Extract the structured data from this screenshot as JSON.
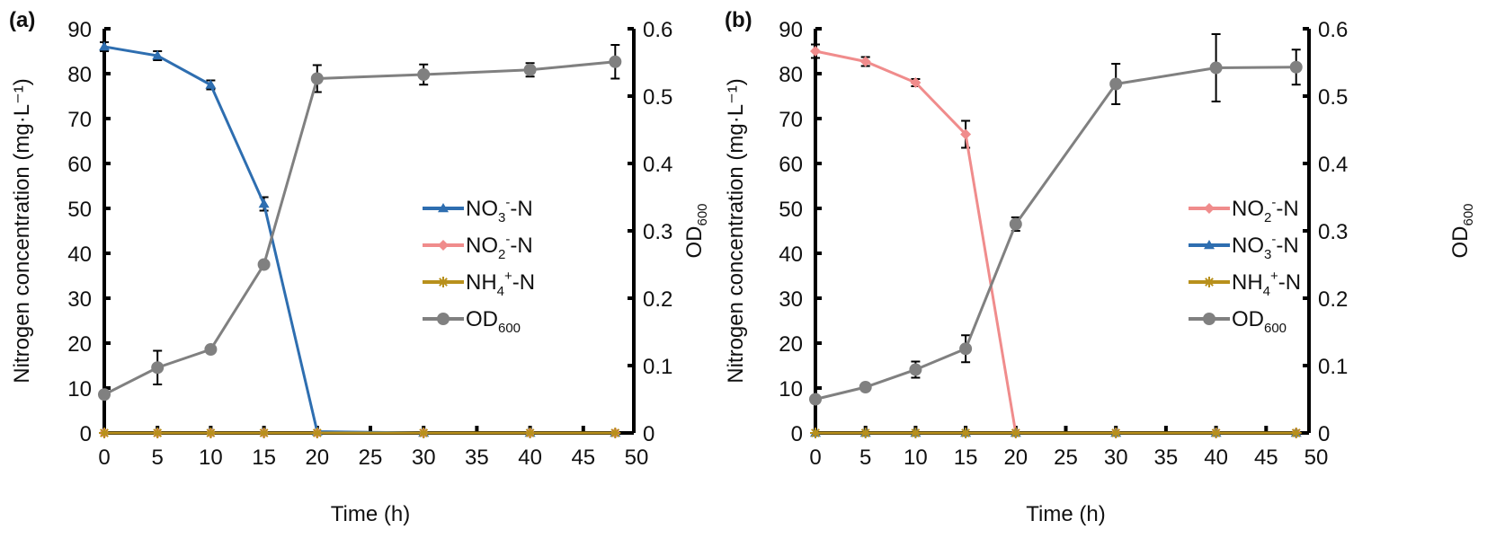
{
  "chart_data": [
    {
      "type": "line",
      "panel_label": "(a)",
      "xlabel": "Time (h)",
      "ylabel": "Nitrogen concentration (mg·L⁻¹)",
      "y2label": "OD600",
      "xlim": [
        0,
        50
      ],
      "ylim": [
        0,
        90
      ],
      "y2lim": [
        0,
        0.6
      ],
      "xticks": [
        0,
        5,
        10,
        15,
        20,
        25,
        30,
        35,
        40,
        45,
        50
      ],
      "yticks": [
        0,
        10,
        20,
        30,
        40,
        50,
        60,
        70,
        80,
        90
      ],
      "y2ticks": [
        "0",
        "0.1",
        "0.2",
        "0.3",
        "0.4",
        "0.5",
        "0.6"
      ],
      "x": [
        0,
        5,
        10,
        15,
        20,
        30,
        40,
        48
      ],
      "legend_position": "center-right",
      "series": [
        {
          "name": "NO3--N",
          "label_main": "NO",
          "label_sub": "3",
          "label_sup": "-",
          "label_tail": "-N",
          "axis": "left",
          "marker": "triangle",
          "color": "#2e6eb0",
          "values": [
            86,
            84,
            77.5,
            51,
            0.3,
            0,
            0,
            0
          ],
          "errors": [
            1,
            1,
            1,
            1.5,
            0,
            0,
            0,
            0
          ]
        },
        {
          "name": "NO2--N",
          "label_main": "NO",
          "label_sub": "2",
          "label_sup": "-",
          "label_tail": "-N",
          "axis": "left",
          "marker": "diamond",
          "color": "#f08c8c",
          "values": [
            0,
            0,
            0,
            0,
            0,
            0,
            0,
            0
          ],
          "errors": [
            0,
            0,
            0,
            0,
            0,
            0,
            0,
            0
          ]
        },
        {
          "name": "NH4+-N",
          "label_main": "NH",
          "label_sub": "4",
          "label_sup": "+",
          "label_tail": "-N",
          "axis": "left",
          "marker": "star",
          "color": "#b8901c",
          "values": [
            0,
            0,
            0,
            0,
            0,
            0,
            0,
            0
          ],
          "errors": [
            0,
            0,
            0,
            0,
            0,
            0,
            0,
            0
          ]
        },
        {
          "name": "OD600",
          "label_main": "OD",
          "label_sub": "600",
          "label_sup": "",
          "label_tail": "",
          "axis": "right",
          "marker": "circle",
          "color": "#808080",
          "values": [
            0.057,
            0.097,
            0.124,
            0.25,
            0.526,
            0.532,
            0.539,
            0.551
          ],
          "errors": [
            0.003,
            0.025,
            0.004,
            0.004,
            0.02,
            0.015,
            0.01,
            0.025
          ]
        }
      ]
    },
    {
      "type": "line",
      "panel_label": "(b)",
      "xlabel": "Time (h)",
      "ylabel": "Nitrogen concentration (mg·L⁻¹)",
      "y2label": "OD600",
      "xlim": [
        0,
        50
      ],
      "ylim": [
        0,
        90
      ],
      "y2lim": [
        0,
        0.6
      ],
      "xticks": [
        0,
        5,
        10,
        15,
        20,
        25,
        30,
        35,
        40,
        45,
        50
      ],
      "yticks": [
        0,
        10,
        20,
        30,
        40,
        50,
        60,
        70,
        80,
        90
      ],
      "y2ticks": [
        "0",
        "0.1",
        "0.2",
        "0.3",
        "0.4",
        "0.5",
        "0.6"
      ],
      "x": [
        0,
        5,
        10,
        15,
        20,
        30,
        40,
        48
      ],
      "legend_position": "center-right",
      "series": [
        {
          "name": "NO2--N",
          "label_main": "NO",
          "label_sub": "2",
          "label_sup": "-",
          "label_tail": "-N",
          "axis": "left",
          "marker": "diamond",
          "color": "#f08c8c",
          "values": [
            85,
            82.7,
            78,
            66.5,
            0,
            0,
            0,
            0
          ],
          "errors": [
            1.5,
            1,
            0.8,
            3,
            0,
            0,
            0,
            0
          ]
        },
        {
          "name": "NO3--N",
          "label_main": "NO",
          "label_sub": "3",
          "label_sup": "-",
          "label_tail": "-N",
          "axis": "left",
          "marker": "triangle",
          "color": "#2e6eb0",
          "values": [
            0,
            0,
            0,
            0,
            0,
            0,
            0,
            0
          ],
          "errors": [
            0,
            0,
            0,
            0,
            0,
            0,
            0,
            0
          ]
        },
        {
          "name": "NH4+-N",
          "label_main": "NH",
          "label_sub": "4",
          "label_sup": "+",
          "label_tail": "-N",
          "axis": "left",
          "marker": "star",
          "color": "#b8901c",
          "values": [
            0,
            0,
            0,
            0,
            0,
            0,
            0,
            0
          ],
          "errors": [
            0,
            0,
            0,
            0,
            0,
            0,
            0,
            0
          ]
        },
        {
          "name": "OD600",
          "label_main": "OD",
          "label_sub": "600",
          "label_sup": "",
          "label_tail": "",
          "axis": "right",
          "marker": "circle",
          "color": "#808080",
          "values": [
            0.05,
            0.068,
            0.094,
            0.125,
            0.31,
            0.518,
            0.542,
            0.543
          ],
          "errors": [
            0.004,
            0.004,
            0.012,
            0.02,
            0.01,
            0.03,
            0.05,
            0.026
          ]
        }
      ]
    }
  ]
}
